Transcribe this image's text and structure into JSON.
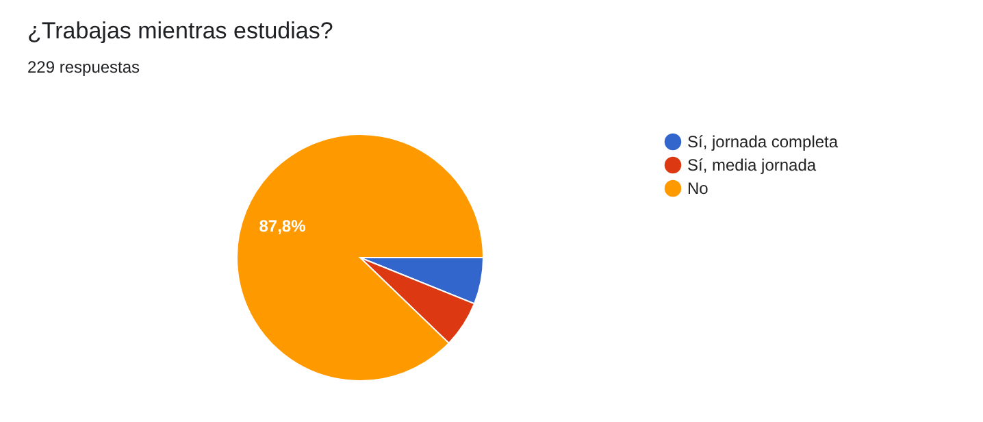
{
  "chart_data": {
    "type": "pie",
    "title": "¿Trabajas mientras estudias?",
    "subtitle": "229 respuestas",
    "categories": [
      "Sí, jornada completa",
      "Sí, media jornada",
      "No"
    ],
    "values": [
      6.1,
      6.1,
      87.8
    ],
    "colors": [
      "#3366cc",
      "#dc3912",
      "#ff9900"
    ],
    "value_labels": [
      null,
      null,
      "87,8%"
    ],
    "legend": "right"
  }
}
